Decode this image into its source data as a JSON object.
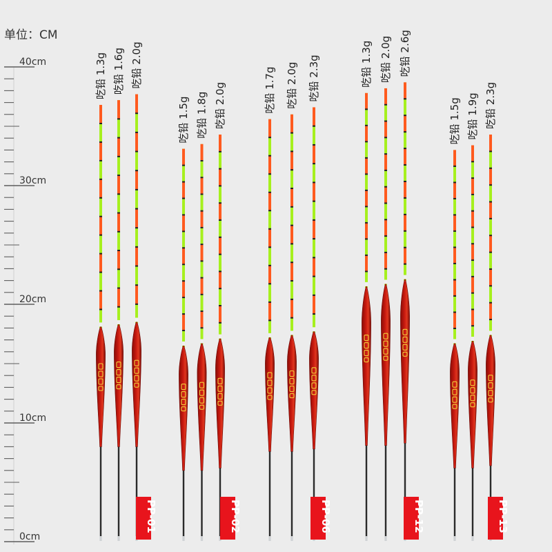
{
  "unit_label": "单位：CM",
  "ruler": {
    "labels": [
      {
        "value": 0,
        "text": "0cm"
      },
      {
        "value": 10,
        "text": "10cm"
      },
      {
        "value": 20,
        "text": "20cm"
      },
      {
        "value": 30,
        "text": "30cm"
      },
      {
        "value": 40,
        "text": "40cm"
      }
    ]
  },
  "colors": {
    "body": "#c81a10",
    "tip_orange": "#ff5a1e",
    "tip_green": "#a6f01e",
    "stem": "#2a2a2a",
    "tag": "#e8141c",
    "brand_text": "#f2d23a"
  },
  "groups": [
    {
      "code": "PP-01",
      "floats": [
        {
          "weight": "吃铅 1.3g",
          "length_cm": 36.8,
          "body_top_cm": 18.0,
          "body_bottom_cm": 8.0
        },
        {
          "weight": "吃铅 1.6g",
          "length_cm": 37.2,
          "body_top_cm": 18.2,
          "body_bottom_cm": 8.0
        },
        {
          "weight": "吃铅 2.0g",
          "length_cm": 37.7,
          "body_top_cm": 18.4,
          "body_bottom_cm": 8.0
        }
      ]
    },
    {
      "code": "PP-02",
      "floats": [
        {
          "weight": "吃铅 1.5g",
          "length_cm": 33.1,
          "body_top_cm": 16.4,
          "body_bottom_cm": 6.0
        },
        {
          "weight": "吃铅 1.8g",
          "length_cm": 33.5,
          "body_top_cm": 16.6,
          "body_bottom_cm": 6.0
        },
        {
          "weight": "吃铅 2.0g",
          "length_cm": 34.3,
          "body_top_cm": 17.0,
          "body_bottom_cm": 6.2
        }
      ]
    },
    {
      "code": "PP-06",
      "floats": [
        {
          "weight": "吃铅 1.7g",
          "length_cm": 35.6,
          "body_top_cm": 17.1,
          "body_bottom_cm": 7.6
        },
        {
          "weight": "吃铅 2.0g",
          "length_cm": 36.0,
          "body_top_cm": 17.3,
          "body_bottom_cm": 7.6
        },
        {
          "weight": "吃铅 2.3g",
          "length_cm": 36.6,
          "body_top_cm": 17.6,
          "body_bottom_cm": 7.8
        }
      ]
    },
    {
      "code": "PP-12",
      "floats": [
        {
          "weight": "吃铅 1.3g",
          "length_cm": 37.8,
          "body_top_cm": 21.4,
          "body_bottom_cm": 8.1
        },
        {
          "weight": "吃铅 2.0g",
          "length_cm": 38.2,
          "body_top_cm": 21.6,
          "body_bottom_cm": 8.1
        },
        {
          "weight": "吃铅 2.6g",
          "length_cm": 38.7,
          "body_top_cm": 22.0,
          "body_bottom_cm": 8.3
        }
      ]
    },
    {
      "code": "PP-13",
      "floats": [
        {
          "weight": "吃铅 1.5g",
          "length_cm": 33.0,
          "body_top_cm": 16.6,
          "body_bottom_cm": 6.2
        },
        {
          "weight": "吃铅 1.9g",
          "length_cm": 33.4,
          "body_top_cm": 16.8,
          "body_bottom_cm": 6.2
        },
        {
          "weight": "吃铅 2.3g",
          "length_cm": 34.3,
          "body_top_cm": 17.3,
          "body_bottom_cm": 6.4
        }
      ]
    }
  ]
}
